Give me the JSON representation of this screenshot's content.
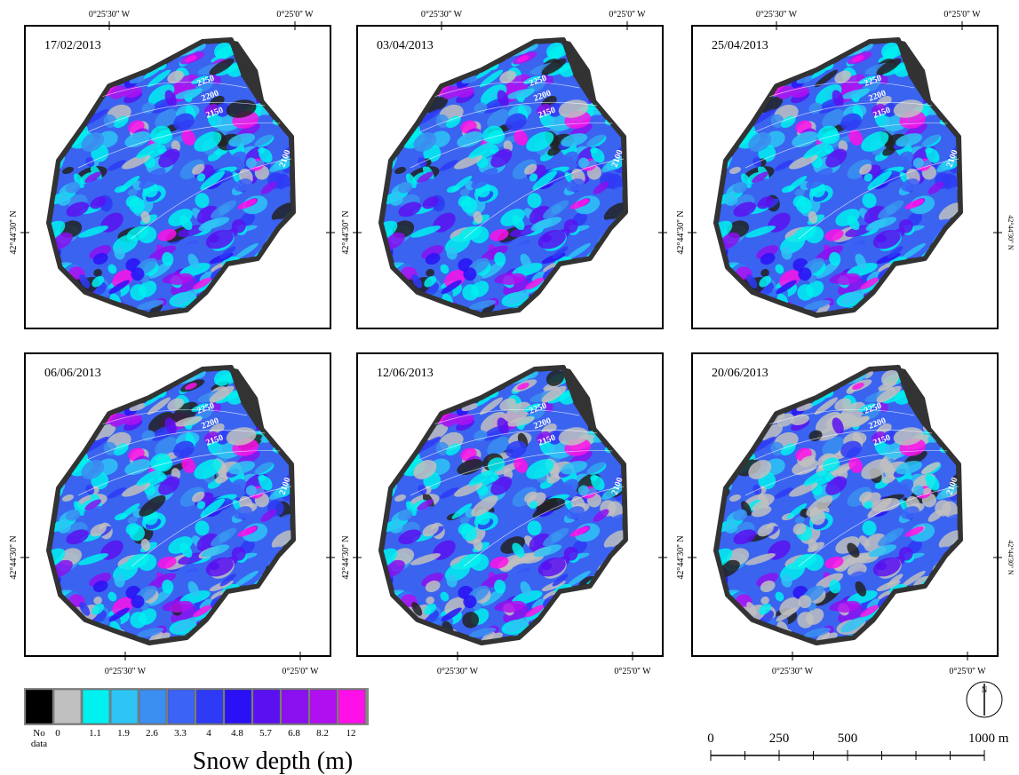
{
  "panels": [
    {
      "date": "17/02/2013"
    },
    {
      "date": "03/04/2013"
    },
    {
      "date": "25/04/2013"
    },
    {
      "date": "06/06/2013"
    },
    {
      "date": "12/06/2013"
    },
    {
      "date": "20/06/2013"
    }
  ],
  "coordinates": {
    "lon": [
      "0°25'30'' W",
      "0°25'0'' W"
    ],
    "lat": "42°44'30'' N"
  },
  "contours": [
    "2250",
    "2200",
    "2150",
    "2100"
  ],
  "legend": {
    "title": "Snow depth (m)",
    "items": [
      {
        "label": "No data",
        "color": "#000000"
      },
      {
        "label": "0",
        "color": "#c0c0c0"
      },
      {
        "label": "1.1",
        "color": "#00f0f0"
      },
      {
        "label": "1.9",
        "color": "#2ec4f5"
      },
      {
        "label": "2.6",
        "color": "#3a8ff0"
      },
      {
        "label": "3.3",
        "color": "#3b63f5"
      },
      {
        "label": "4",
        "color": "#2e3af5"
      },
      {
        "label": "4.8",
        "color": "#2a10f5"
      },
      {
        "label": "5.7",
        "color": "#5a10f0"
      },
      {
        "label": "6.8",
        "color": "#8a10f0"
      },
      {
        "label": "8.2",
        "color": "#b010f0"
      },
      {
        "label": "12",
        "color": "#ff10e8"
      }
    ]
  },
  "north": "N",
  "scale": {
    "xlim": [
      0,
      1000
    ],
    "ticks": [
      0,
      250,
      500,
      {
        "value": 1000,
        "label": "1000 m"
      }
    ]
  }
}
